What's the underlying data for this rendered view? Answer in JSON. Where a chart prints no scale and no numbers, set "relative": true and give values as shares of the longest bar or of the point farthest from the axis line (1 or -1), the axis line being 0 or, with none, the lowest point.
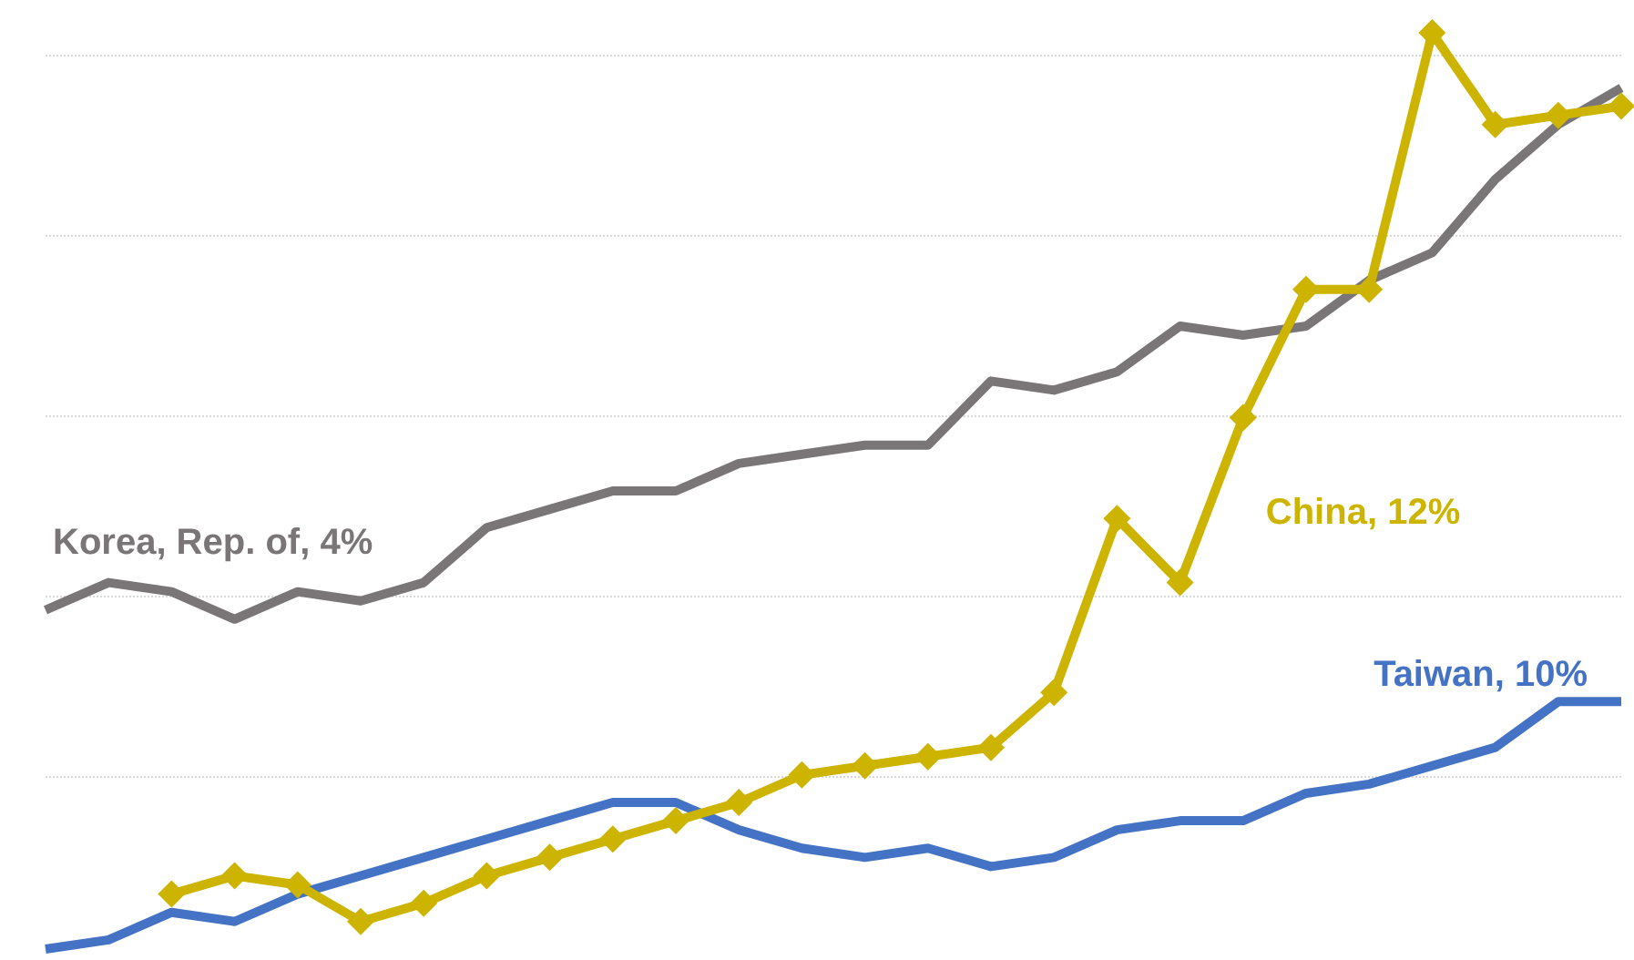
{
  "chart_data": {
    "type": "line",
    "relative": true,
    "grid": "y",
    "categories": [
      null,
      null,
      null,
      null,
      null,
      null,
      null,
      null,
      null,
      null,
      null,
      null,
      null,
      null,
      null,
      null,
      null,
      null,
      null,
      null,
      null,
      null,
      null,
      null,
      null,
      null
    ],
    "series": [
      {
        "name": "Korea, Rep. of, 4%",
        "color": "#7a7576",
        "marker": "none",
        "values": [
          0.37,
          0.4,
          0.39,
          0.36,
          0.39,
          0.38,
          0.4,
          0.46,
          0.48,
          0.5,
          0.5,
          0.53,
          0.54,
          0.55,
          0.55,
          0.62,
          0.61,
          0.63,
          0.68,
          0.67,
          0.68,
          0.73,
          0.76,
          0.84,
          0.9,
          0.94
        ]
      },
      {
        "name": "China, 12%",
        "color": "#ccb400",
        "marker": "diamond",
        "values": [
          null,
          null,
          0.06,
          0.08,
          0.07,
          0.03,
          0.05,
          0.08,
          0.1,
          0.12,
          0.14,
          0.16,
          0.19,
          0.2,
          0.21,
          0.22,
          0.28,
          0.47,
          0.4,
          0.58,
          0.72,
          0.72,
          1,
          0.9,
          0.91,
          0.92
        ]
      },
      {
        "name": "Taiwan, 10%",
        "color": "#4472c4",
        "marker": "none",
        "values": [
          0,
          0.01,
          0.04,
          0.03,
          0.06,
          0.08,
          0.1,
          0.12,
          0.14,
          0.16,
          0.16,
          0.13,
          0.11,
          0.1,
          0.11,
          0.09,
          0.1,
          0.13,
          0.14,
          0.14,
          0.17,
          0.18,
          0.2,
          0.22,
          0.27,
          0.27
        ]
      }
    ]
  }
}
